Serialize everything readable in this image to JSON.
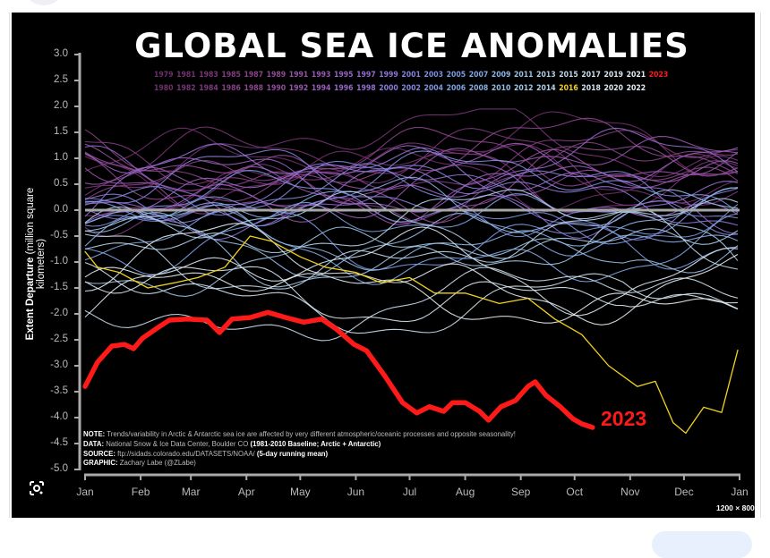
{
  "image_meta": {
    "dimensions_label": "1200 × 800"
  },
  "chart_data": {
    "type": "line",
    "title": "GLOBAL SEA ICE ANOMALIES",
    "ylabel_bold": "Extent Departure",
    "ylabel_rest": "(million square kilometers)",
    "ylim": [
      -5.0,
      3.0
    ],
    "yticks": [
      "3.0",
      "2.5",
      "2.0",
      "1.5",
      "1.0",
      "0.5",
      "0.0",
      "-0.5",
      "-1.0",
      "-1.5",
      "-2.0",
      "-2.5",
      "-3.0",
      "-3.5",
      "-4.0",
      "-4.5",
      "-5.0"
    ],
    "xticks": [
      "Jan",
      "Feb",
      "Mar",
      "Apr",
      "May",
      "Jun",
      "Jul",
      "Aug",
      "Sep",
      "Oct",
      "Nov",
      "Dec",
      "Jan"
    ],
    "baseline": 0.0,
    "baseline_color": "#a8a8a8",
    "grid": false,
    "legend_placement": "top",
    "legend": {
      "row1": [
        {
          "year": "1979",
          "color": "#6e2f6a"
        },
        {
          "year": "1981",
          "color": "#733270"
        },
        {
          "year": "1983",
          "color": "#7a3677"
        },
        {
          "year": "1985",
          "color": "#823c80"
        },
        {
          "year": "1987",
          "color": "#8a4389"
        },
        {
          "year": "1989",
          "color": "#904b96"
        },
        {
          "year": "1991",
          "color": "#9652a6"
        },
        {
          "year": "1993",
          "color": "#985ab4"
        },
        {
          "year": "1995",
          "color": "#9862c2"
        },
        {
          "year": "1997",
          "color": "#946bcc"
        },
        {
          "year": "1999",
          "color": "#8d76d4"
        },
        {
          "year": "2001",
          "color": "#8582da"
        },
        {
          "year": "2003",
          "color": "#7e8ede"
        },
        {
          "year": "2005",
          "color": "#7d9ae0"
        },
        {
          "year": "2007",
          "color": "#82a6e2"
        },
        {
          "year": "2009",
          "color": "#8db4e4"
        },
        {
          "year": "2011",
          "color": "#9cc2e6"
        },
        {
          "year": "2013",
          "color": "#accde8"
        },
        {
          "year": "2015",
          "color": "#bcd6ea"
        },
        {
          "year": "2017",
          "color": "#cbdeec"
        },
        {
          "year": "2019",
          "color": "#d8e5ef"
        },
        {
          "year": "2021",
          "color": "#e3ebf1"
        },
        {
          "year": "2023",
          "color": "#ff1a1a"
        }
      ],
      "row2": [
        {
          "year": "1980",
          "color": "#70306c"
        },
        {
          "year": "1982",
          "color": "#773474"
        },
        {
          "year": "1984",
          "color": "#7e397c"
        },
        {
          "year": "1986",
          "color": "#864085"
        },
        {
          "year": "1988",
          "color": "#8d478f"
        },
        {
          "year": "1990",
          "color": "#934e9e"
        },
        {
          "year": "1992",
          "color": "#9756ad"
        },
        {
          "year": "1994",
          "color": "#995ebb"
        },
        {
          "year": "1996",
          "color": "#9666c8"
        },
        {
          "year": "1998",
          "color": "#9170d0"
        },
        {
          "year": "2000",
          "color": "#897cd7"
        },
        {
          "year": "2002",
          "color": "#8188dc"
        },
        {
          "year": "2004",
          "color": "#7d94df"
        },
        {
          "year": "2006",
          "color": "#7fa0e1"
        },
        {
          "year": "2008",
          "color": "#87ade3"
        },
        {
          "year": "2010",
          "color": "#94bbe5"
        },
        {
          "year": "2012",
          "color": "#a4c8e7"
        },
        {
          "year": "2014",
          "color": "#b4d2e9"
        },
        {
          "year": "2016",
          "color": "#f2d21b"
        },
        {
          "year": "2018",
          "color": "#d2e2ee"
        },
        {
          "year": "2020",
          "color": "#dde8f0"
        },
        {
          "year": "2022",
          "color": "#e8eef2"
        }
      ]
    },
    "series": [
      {
        "name": "2023",
        "color": "#ff1a1a",
        "highlight": true,
        "points": [
          [
            "01-01",
            -3.4
          ],
          [
            "01-08",
            -2.93
          ],
          [
            "01-16",
            -2.62
          ],
          [
            "01-23",
            -2.59
          ],
          [
            "01-28",
            -2.67
          ],
          [
            "02-02",
            -2.47
          ],
          [
            "02-10",
            -2.28
          ],
          [
            "02-17",
            -2.12
          ],
          [
            "02-27",
            -2.1
          ],
          [
            "03-10",
            -2.12
          ],
          [
            "03-17",
            -2.36
          ],
          [
            "03-24",
            -2.1
          ],
          [
            "04-03",
            -2.07
          ],
          [
            "04-13",
            -1.97
          ],
          [
            "04-23",
            -2.07
          ],
          [
            "05-03",
            -2.16
          ],
          [
            "05-13",
            -2.1
          ],
          [
            "05-21",
            -2.29
          ],
          [
            "05-31",
            -2.59
          ],
          [
            "06-07",
            -2.71
          ],
          [
            "06-17",
            -3.19
          ],
          [
            "06-27",
            -3.71
          ],
          [
            "07-05",
            -3.91
          ],
          [
            "07-12",
            -3.79
          ],
          [
            "07-20",
            -3.88
          ],
          [
            "07-25",
            -3.71
          ],
          [
            "08-01",
            -3.71
          ],
          [
            "08-09",
            -3.88
          ],
          [
            "08-14",
            -4.05
          ],
          [
            "08-21",
            -3.79
          ],
          [
            "08-29",
            -3.67
          ],
          [
            "09-05",
            -3.4
          ],
          [
            "09-09",
            -3.31
          ],
          [
            "09-15",
            -3.57
          ],
          [
            "09-23",
            -3.79
          ],
          [
            "09-30",
            -4.02
          ],
          [
            "10-05",
            -4.12
          ],
          [
            "10-11",
            -4.19
          ]
        ]
      },
      {
        "name": "2016",
        "color": "#f2d21b",
        "points": [
          [
            "01-01",
            -0.8
          ],
          [
            "01-08",
            -1.1
          ],
          [
            "01-20",
            -1.2
          ],
          [
            "02-05",
            -1.5
          ],
          [
            "02-20",
            -1.4
          ],
          [
            "03-05",
            -1.3
          ],
          [
            "03-20",
            -1.1
          ],
          [
            "04-03",
            -0.5
          ],
          [
            "04-15",
            -0.6
          ],
          [
            "05-01",
            -0.9
          ],
          [
            "05-15",
            -1.1
          ],
          [
            "06-01",
            -1.2
          ],
          [
            "06-15",
            -1.4
          ],
          [
            "07-01",
            -1.3
          ],
          [
            "07-15",
            -1.6
          ],
          [
            "08-01",
            -1.6
          ],
          [
            "08-20",
            -1.8
          ],
          [
            "09-05",
            -1.7
          ],
          [
            "09-20",
            -2.1
          ],
          [
            "10-05",
            -2.4
          ],
          [
            "10-20",
            -3.0
          ],
          [
            "11-05",
            -3.4
          ],
          [
            "11-15",
            -3.3
          ],
          [
            "11-25",
            -4.1
          ],
          [
            "12-02",
            -4.3
          ],
          [
            "12-12",
            -3.8
          ],
          [
            "12-22",
            -3.9
          ],
          [
            "12-31",
            -2.7
          ]
        ]
      }
    ],
    "other_years_approx_mean_anomaly": {
      "1979": 0.8,
      "1980": 1.0,
      "1981": 0.6,
      "1982": 1.2,
      "1983": 0.8,
      "1984": 0.6,
      "1985": 0.9,
      "1986": 0.7,
      "1987": 0.8,
      "1988": 0.9,
      "1989": 0.5,
      "1990": 0.6,
      "1991": 0.6,
      "1992": 0.7,
      "1993": 0.5,
      "1994": 0.7,
      "1995": 0.4,
      "1996": 0.6,
      "1997": 0.2,
      "1998": 0.5,
      "1999": 0.3,
      "2000": 0.3,
      "2001": 0.4,
      "2002": 0.1,
      "2003": 0.3,
      "2004": 0.0,
      "2005": -0.3,
      "2006": -0.4,
      "2007": -0.8,
      "2008": -0.2,
      "2009": -0.4,
      "2010": -0.4,
      "2011": -1.0,
      "2012": -0.7,
      "2013": -0.4,
      "2014": -0.3,
      "2015": -0.8,
      "2017": -1.8,
      "2018": -1.6,
      "2019": -1.5,
      "2020": -1.3,
      "2021": -1.2,
      "2022": -1.6
    },
    "annotation_2023": "2023",
    "notes": {
      "note_label": "NOTE:",
      "note_text": "Trends/variability in Arctic & Antarctic sea ice are affected by very different atmospheric/oceanic processes and opposite seasonality!",
      "data_label": "DATA:",
      "data_text": "National Snow & Ice Data Center, Boulder CO",
      "data_bold": "(1981-2010 Baseline; Arctic + Antarctic)",
      "source_label": "SOURCE:",
      "source_text": "ftp://sidads.colorado.edu/DATASETS/NOAA/",
      "source_bold": "(5-day running mean)",
      "graphic_label": "GRAPHIC:",
      "graphic_text": "Zachary Labe (@ZLabe)"
    }
  }
}
